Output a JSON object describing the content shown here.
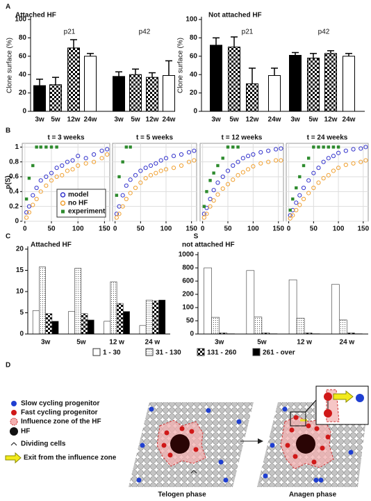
{
  "panel_labels": [
    "A",
    "B",
    "C",
    "D"
  ],
  "chart_data": [
    {
      "type": "bar",
      "title": "Attached HF",
      "ylabel": "Clone surface (%)",
      "ylim": [
        0,
        100
      ],
      "yticks": [
        0,
        20,
        40,
        60,
        80,
        100
      ],
      "fills": [
        "#000000",
        "checker",
        "checker",
        "#ffffff"
      ],
      "groups": [
        {
          "name": "p21",
          "categories": [
            "3w",
            "5w",
            "12w",
            "24w"
          ],
          "values": [
            28,
            29,
            69,
            60
          ],
          "errors": [
            7,
            8,
            9,
            3
          ]
        },
        {
          "name": "p42",
          "categories": [
            "3w",
            "5w",
            "12w",
            "24w"
          ],
          "values": [
            38,
            40,
            37,
            39
          ],
          "errors": [
            5,
            6,
            5,
            16
          ]
        }
      ]
    },
    {
      "type": "bar",
      "title": "Not attached HF",
      "ylabel": "Clone surface (%)",
      "ylim": [
        0,
        100
      ],
      "yticks": [
        0,
        20,
        40,
        60,
        80,
        100
      ],
      "fills": [
        "#000000",
        "checker",
        "checker",
        "#ffffff"
      ],
      "groups": [
        {
          "name": "p21",
          "categories": [
            "3w",
            "5w",
            "12w",
            "24w"
          ],
          "values": [
            72,
            70,
            30,
            39
          ],
          "errors": [
            8,
            11,
            17,
            8
          ]
        },
        {
          "name": "p42",
          "categories": [
            "3w",
            "5w",
            "12w",
            "24w"
          ],
          "values": [
            61,
            58,
            63,
            60
          ],
          "errors": [
            3,
            5,
            3,
            3
          ]
        }
      ]
    },
    {
      "type": "scatter",
      "title": "t = 3 weeks",
      "xlabel": "S",
      "ylabel": "p(S)",
      "xlim": [
        -5,
        160
      ],
      "xticks": [
        0,
        50,
        100,
        150
      ],
      "ylim": [
        0,
        1.05
      ],
      "yticks": [
        0,
        0.2,
        0.4,
        0.6,
        0.8,
        1
      ],
      "grid": true,
      "legend": "lower right",
      "x": [
        3,
        8,
        15,
        22,
        30,
        40,
        50,
        60,
        70,
        80,
        90,
        100,
        115,
        130,
        145,
        155
      ],
      "series": [
        {
          "name": "model",
          "color": "#3333cc",
          "marker": "circle",
          "values": [
            0.12,
            0.2,
            0.35,
            0.45,
            0.55,
            0.6,
            0.65,
            0.72,
            0.75,
            0.8,
            0.82,
            0.88,
            0.85,
            0.9,
            0.95,
            0.97
          ]
        },
        {
          "name": "no HF",
          "color": "#f0a030",
          "marker": "circle",
          "values": [
            0.05,
            0.12,
            0.22,
            0.3,
            0.4,
            0.48,
            0.55,
            0.6,
            0.62,
            0.68,
            0.7,
            0.75,
            0.78,
            0.8,
            0.85,
            0.9
          ]
        },
        {
          "name": "experiment",
          "color": "#2e8b2e",
          "marker": "square",
          "values": [
            0.3,
            0.58,
            0.75,
            1,
            1,
            1,
            1,
            1,
            null,
            null,
            null,
            null,
            null,
            null,
            null,
            null
          ]
        }
      ]
    },
    {
      "type": "scatter",
      "title": "t = 5 weeks",
      "xlim": [
        -5,
        160
      ],
      "xticks": [
        0,
        50,
        100,
        150
      ],
      "ylim": [
        0,
        1.05
      ],
      "yticks": [
        0,
        0.2,
        0.4,
        0.6,
        0.8,
        1
      ],
      "grid": true,
      "x": [
        3,
        8,
        15,
        22,
        30,
        40,
        50,
        60,
        70,
        80,
        90,
        100,
        115,
        130,
        145,
        155
      ],
      "series": [
        {
          "color": "#3333cc",
          "marker": "circle",
          "values": [
            0.1,
            0.2,
            0.35,
            0.48,
            0.56,
            0.62,
            0.68,
            0.72,
            0.75,
            0.78,
            0.82,
            0.85,
            0.88,
            0.9,
            0.93,
            0.95
          ]
        },
        {
          "color": "#f0a030",
          "marker": "circle",
          "values": [
            0.05,
            0.1,
            0.2,
            0.3,
            0.38,
            0.45,
            0.52,
            0.58,
            0.62,
            0.65,
            0.68,
            0.7,
            0.72,
            0.75,
            0.8,
            0.82
          ]
        },
        {
          "color": "#2e8b2e",
          "marker": "square",
          "values": [
            0.35,
            0.6,
            0.8,
            1,
            1,
            null,
            null,
            null,
            null,
            null,
            null,
            null,
            null,
            null,
            null,
            null
          ]
        }
      ]
    },
    {
      "type": "scatter",
      "title": "t = 12 weeks",
      "xlim": [
        -5,
        160
      ],
      "xticks": [
        0,
        50,
        100,
        150
      ],
      "ylim": [
        0,
        1.05
      ],
      "yticks": [
        0,
        0.2,
        0.4,
        0.6,
        0.8,
        1
      ],
      "grid": true,
      "x": [
        3,
        8,
        15,
        22,
        30,
        40,
        50,
        60,
        70,
        80,
        90,
        100,
        115,
        130,
        145,
        155
      ],
      "series": [
        {
          "color": "#3333cc",
          "marker": "circle",
          "values": [
            0.1,
            0.18,
            0.3,
            0.42,
            0.52,
            0.6,
            0.68,
            0.75,
            0.8,
            0.85,
            0.88,
            0.9,
            0.93,
            0.95,
            0.97,
            0.98
          ]
        },
        {
          "color": "#f0a030",
          "marker": "circle",
          "values": [
            0.05,
            0.1,
            0.2,
            0.28,
            0.36,
            0.44,
            0.5,
            0.56,
            0.62,
            0.66,
            0.7,
            0.74,
            0.78,
            0.8,
            0.82,
            0.82
          ]
        },
        {
          "color": "#2e8b2e",
          "marker": "square",
          "values": [
            0.2,
            0.4,
            0.55,
            0.65,
            0.75,
            0.85,
            1,
            1,
            1,
            null,
            null,
            null,
            null,
            null,
            null,
            null
          ]
        }
      ]
    },
    {
      "type": "scatter",
      "title": "t = 24 weeks",
      "xlim": [
        -5,
        160
      ],
      "xticks": [
        0,
        50,
        100,
        150
      ],
      "ylim": [
        0,
        1.05
      ],
      "yticks": [
        0,
        0.2,
        0.4,
        0.6,
        0.8,
        1
      ],
      "grid": true,
      "x": [
        3,
        8,
        15,
        22,
        30,
        40,
        50,
        60,
        70,
        80,
        90,
        100,
        115,
        130,
        145,
        155
      ],
      "series": [
        {
          "color": "#3333cc",
          "marker": "circle",
          "values": [
            0.08,
            0.15,
            0.25,
            0.35,
            0.45,
            0.55,
            0.65,
            0.72,
            0.8,
            0.85,
            0.88,
            0.92,
            0.95,
            0.97,
            0.98,
            1
          ]
        },
        {
          "color": "#f0a030",
          "marker": "circle",
          "values": [
            0.04,
            0.08,
            0.15,
            0.22,
            0.3,
            0.38,
            0.45,
            0.52,
            0.58,
            0.62,
            0.68,
            0.72,
            0.76,
            0.78,
            0.8,
            0.82
          ]
        },
        {
          "color": "#2e8b2e",
          "marker": "square",
          "values": [
            0.15,
            0.3,
            0.45,
            0.6,
            0.75,
            0.85,
            1,
            1,
            1,
            1,
            1,
            1,
            null,
            null,
            null,
            null
          ]
        }
      ]
    },
    {
      "type": "grouped_bar",
      "title": "Attached HF",
      "ylim": [
        0,
        20
      ],
      "yticks": [
        0,
        5,
        10,
        15,
        20
      ],
      "legend": "bottom",
      "categories": [
        "3w",
        "5w",
        "12 w",
        "24 w"
      ],
      "series": [
        {
          "name": "1 - 30",
          "fill": "#ffffff",
          "values": [
            5.5,
            5.3,
            3,
            2
          ]
        },
        {
          "name": "31 - 130",
          "fill": "dots",
          "values": [
            15.8,
            15.5,
            12.3,
            8
          ]
        },
        {
          "name": "131 - 260",
          "fill": "checker",
          "values": [
            4.8,
            4.8,
            7.2,
            7.8
          ]
        },
        {
          "name": "261 - over",
          "fill": "#000000",
          "values": [
            3,
            3.3,
            5.3,
            8
          ]
        }
      ]
    },
    {
      "type": "grouped_bar",
      "title": "not attached HF",
      "ylim": [
        0,
        1000
      ],
      "yticks": [
        0,
        50,
        100,
        200,
        600,
        800,
        1000
      ],
      "scale": "piecewise",
      "categories": [
        "3w",
        "5w",
        "12 w",
        "24 w"
      ],
      "series": [
        {
          "fill": "#ffffff",
          "values": [
            800,
            760,
            620,
            500
          ]
        },
        {
          "fill": "dots",
          "values": [
            63,
            64,
            60,
            53
          ]
        },
        {
          "fill": "checker",
          "values": [
            4,
            4,
            4,
            4
          ]
        },
        {
          "fill": "#000000",
          "values": [
            1,
            1,
            1,
            1
          ]
        }
      ]
    }
  ],
  "diagram": {
    "legend": [
      "Slow cycling progenitor",
      "Fast cycling progenitor",
      "Influence zone of the HF",
      "HF",
      "Dividing cells",
      "Exit from the influence zone"
    ],
    "phases": [
      "Telogen phase",
      "Anagen phase"
    ]
  }
}
